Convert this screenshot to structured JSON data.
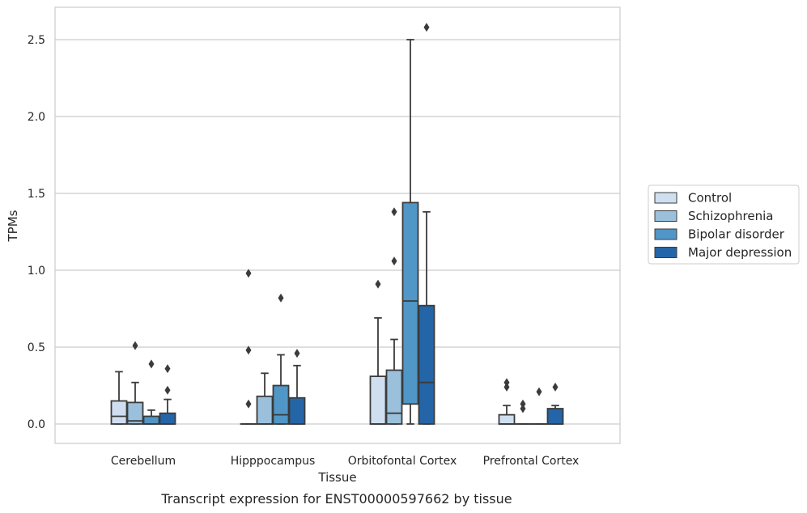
{
  "caption": "Transcript expression for ENST00000597662 by tissue",
  "chart_data": {
    "type": "box",
    "title": "",
    "xlabel": "Tissue",
    "ylabel": "TPMs",
    "ylim": [
      -0.12,
      2.72
    ],
    "yticks": [
      0.0,
      0.5,
      1.0,
      1.5,
      2.0,
      2.5
    ],
    "ytick_labels": [
      "0.0",
      "0.5",
      "1.0",
      "1.5",
      "2.0",
      "2.5"
    ],
    "grid": "horizontal",
    "legend_position": "right",
    "categories": [
      "Cerebellum",
      "Hipppocampus",
      "Orbitofontal Cortex",
      "Prefrontal Cortex"
    ],
    "series": [
      {
        "name": "Control",
        "color": "#cfdff0",
        "boxes": [
          {
            "whislo": 0.0,
            "q1": 0.0,
            "med": 0.05,
            "q3": 0.15,
            "whishi": 0.34,
            "fliers": []
          },
          {
            "whislo": 0.0,
            "q1": 0.0,
            "med": 0.0,
            "q3": 0.0,
            "whishi": 0.0,
            "fliers": [
              0.13,
              0.48,
              0.98
            ]
          },
          {
            "whislo": 0.0,
            "q1": 0.0,
            "med": 0.0,
            "q3": 0.31,
            "whishi": 0.69,
            "fliers": [
              0.91
            ]
          },
          {
            "whislo": 0.0,
            "q1": 0.0,
            "med": 0.0,
            "q3": 0.06,
            "whishi": 0.12,
            "fliers": [
              0.24,
              0.27
            ]
          }
        ]
      },
      {
        "name": "Schizophrenia",
        "color": "#9ac0db",
        "boxes": [
          {
            "whislo": 0.0,
            "q1": 0.0,
            "med": 0.02,
            "q3": 0.14,
            "whishi": 0.27,
            "fliers": [
              0.51
            ]
          },
          {
            "whislo": 0.0,
            "q1": 0.0,
            "med": 0.0,
            "q3": 0.18,
            "whishi": 0.33,
            "fliers": []
          },
          {
            "whislo": 0.0,
            "q1": 0.0,
            "med": 0.07,
            "q3": 0.35,
            "whishi": 0.55,
            "fliers": [
              1.06,
              1.38
            ]
          },
          {
            "whislo": 0.0,
            "q1": 0.0,
            "med": 0.0,
            "q3": 0.0,
            "whishi": 0.0,
            "fliers": [
              0.1,
              0.13
            ]
          }
        ]
      },
      {
        "name": "Bipolar disorder",
        "color": "#5096c6",
        "boxes": [
          {
            "whislo": 0.0,
            "q1": 0.0,
            "med": 0.0,
            "q3": 0.05,
            "whishi": 0.09,
            "fliers": [
              0.39
            ]
          },
          {
            "whislo": 0.0,
            "q1": 0.0,
            "med": 0.06,
            "q3": 0.25,
            "whishi": 0.45,
            "fliers": [
              0.82
            ]
          },
          {
            "whislo": 0.0,
            "q1": 0.13,
            "med": 0.8,
            "q3": 1.44,
            "whishi": 2.5,
            "fliers": []
          },
          {
            "whislo": 0.0,
            "q1": 0.0,
            "med": 0.0,
            "q3": 0.0,
            "whishi": 0.0,
            "fliers": [
              0.21
            ]
          }
        ]
      },
      {
        "name": "Major depression",
        "color": "#2465a8",
        "boxes": [
          {
            "whislo": 0.0,
            "q1": 0.0,
            "med": 0.0,
            "q3": 0.07,
            "whishi": 0.16,
            "fliers": [
              0.22,
              0.36
            ]
          },
          {
            "whislo": 0.0,
            "q1": 0.0,
            "med": 0.0,
            "q3": 0.17,
            "whishi": 0.38,
            "fliers": [
              0.46
            ]
          },
          {
            "whislo": 0.0,
            "q1": 0.0,
            "med": 0.27,
            "q3": 0.77,
            "whishi": 1.38,
            "fliers": [
              2.58
            ]
          },
          {
            "whislo": 0.0,
            "q1": 0.0,
            "med": 0.0,
            "q3": 0.1,
            "whishi": 0.12,
            "fliers": [
              0.24
            ]
          }
        ]
      }
    ]
  }
}
